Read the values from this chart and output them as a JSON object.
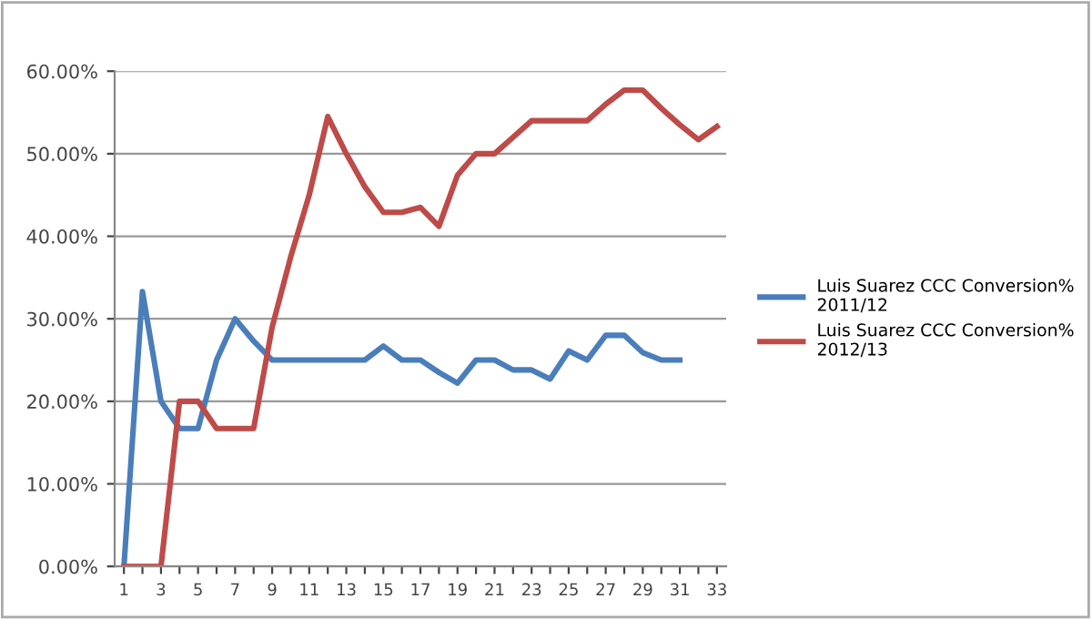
{
  "chart_data": {
    "type": "line",
    "categories": [
      "1",
      null,
      "3",
      null,
      "5",
      null,
      "7",
      null,
      "9",
      null,
      "11",
      null,
      "13",
      null,
      "15",
      null,
      "17",
      null,
      "19",
      null,
      "21",
      null,
      "23",
      null,
      "25",
      null,
      "27",
      null,
      "29",
      null,
      "31",
      null,
      "33"
    ],
    "series": [
      {
        "name": "Luis Suarez CCC Conversion%\n2011/12",
        "color": "#4a7ebb",
        "values": [
          0,
          33.3,
          20,
          16.7,
          16.7,
          25,
          30,
          27.3,
          25,
          25,
          25,
          25,
          25,
          25,
          26.7,
          25,
          25,
          23.5,
          22.2,
          25,
          25,
          23.8,
          23.8,
          22.7,
          26.1,
          25,
          28,
          28,
          25.9,
          25,
          25,
          null,
          null
        ]
      },
      {
        "name": "Luis Suarez CCC Conversion%\n2012/13",
        "color": "#be4b48",
        "values": [
          0,
          0,
          0,
          20,
          20,
          16.7,
          16.7,
          16.7,
          29,
          37.5,
          45,
          54.5,
          50,
          46,
          42.9,
          42.9,
          43.5,
          41.2,
          47.4,
          50,
          50,
          52,
          54,
          54,
          54,
          54,
          56,
          57.7,
          57.7,
          55.5,
          53.5,
          51.7,
          53.3
        ]
      }
    ],
    "ylim": [
      0,
      60
    ],
    "yticks": [
      {
        "value": 0,
        "label": "0.00%"
      },
      {
        "value": 10,
        "label": "10.00%"
      },
      {
        "value": 20,
        "label": "20.00%"
      },
      {
        "value": 30,
        "label": "30.00%"
      },
      {
        "value": 40,
        "label": "40.00%"
      },
      {
        "value": 50,
        "label": "50.00%"
      },
      {
        "value": 60,
        "label": "60.00%"
      }
    ],
    "grid": "y",
    "legend": "right",
    "marker": "none",
    "line_style": "solid"
  }
}
